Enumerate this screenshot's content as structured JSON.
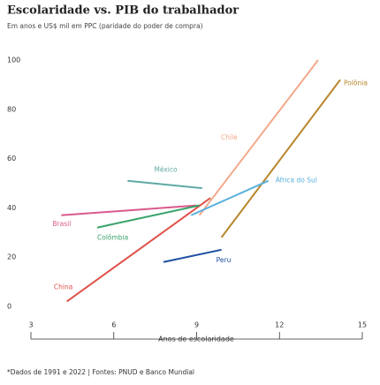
{
  "chart_data": {
    "type": "line",
    "title": "Escolaridade vs. PIB do trabalhador",
    "subtitle": "Em anos e US$ mil em PPC (paridade do poder de compra)",
    "x_label": "Anos de escolaridade",
    "footnote": "*Dados de 1991 e 2022 | Fontes: PNUD e Banco Mundial",
    "xlim": [
      3,
      15
    ],
    "xticks": [
      3,
      6,
      9,
      12,
      15
    ],
    "ylim": [
      0,
      100
    ],
    "yticks": [
      0,
      20,
      40,
      60,
      80,
      100
    ],
    "series": [
      {
        "name": "China",
        "color": "#e0524a",
        "x": [
          4.3,
          9.5
        ],
        "values": [
          2,
          44
        ]
      },
      {
        "name": "Polônia",
        "color": "#b8862a",
        "x": [
          9.9,
          14.2
        ],
        "values": [
          28,
          92
        ]
      },
      {
        "name": "Chile",
        "color": "#f3a98c",
        "x": [
          9.1,
          13.4
        ],
        "values": [
          37,
          100
        ]
      },
      {
        "name": "México",
        "color": "#5fa9a5",
        "x": [
          6.5,
          9.2
        ],
        "values": [
          51,
          48
        ]
      },
      {
        "name": "África do Sul",
        "color": "#5ab0de",
        "x": [
          8.8,
          11.6
        ],
        "values": [
          37,
          51
        ]
      },
      {
        "name": "Brasil",
        "color": "#d85a8c",
        "x": [
          4.1,
          9.0
        ],
        "values": [
          37,
          41
        ]
      },
      {
        "name": "Colômbia",
        "color": "#3aa36b",
        "x": [
          5.4,
          9.1
        ],
        "values": [
          32,
          41
        ]
      },
      {
        "name": "Peru",
        "color": "#1e4fa0",
        "x": [
          7.8,
          9.9
        ],
        "values": [
          18,
          23
        ]
      }
    ]
  }
}
